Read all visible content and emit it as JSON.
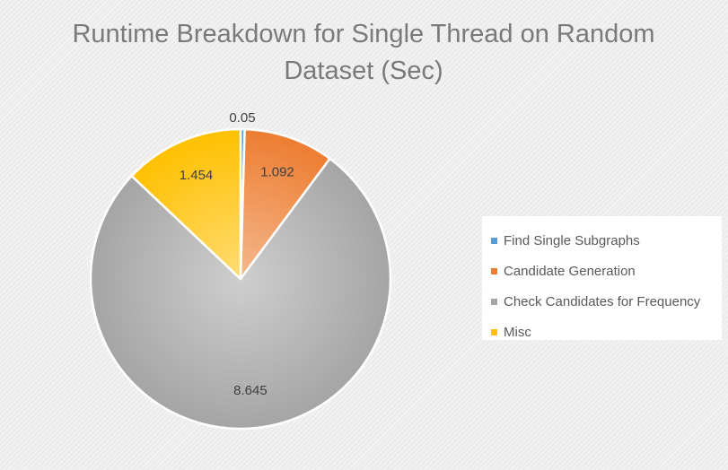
{
  "chart_data": {
    "type": "pie",
    "title": "Runtime Breakdown for Single Thread on Random Dataset (Sec)",
    "categories": [
      "Find Single Subgraphs",
      "Candidate Generation",
      "Check Candidates for Frequency",
      "Misc"
    ],
    "values": [
      0.05,
      1.092,
      8.645,
      1.454
    ],
    "value_labels": [
      "0.05",
      "1.092",
      "8.645",
      "1.454"
    ],
    "colors": [
      "#5b9bd5",
      "#ed7d31",
      "#a5a5a5",
      "#ffc000"
    ],
    "legend_position": "right",
    "start_angle_deg": 0
  }
}
